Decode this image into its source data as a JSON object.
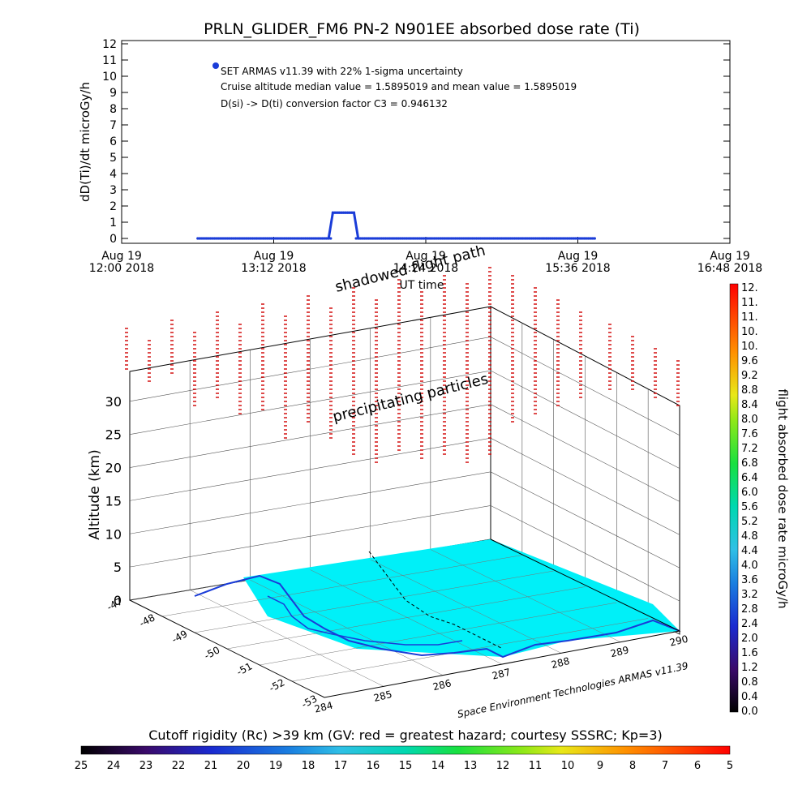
{
  "title": "PRLN_GLIDER_FM6 PN-2 N901EE absorbed dose rate (Ti)",
  "top_chart": {
    "ylabel": "dD(Ti)/dt microGy/h",
    "xlabel": "UT time",
    "y_ticks": [
      "0",
      "1",
      "2",
      "3",
      "4",
      "5",
      "6",
      "7",
      "8",
      "9",
      "10",
      "11",
      "12"
    ],
    "x_ticks": [
      {
        "date": "Aug 19",
        "time": "12:00 2018"
      },
      {
        "date": "Aug 19",
        "time": "13:12 2018"
      },
      {
        "date": "Aug 19",
        "time": "14:24 2018"
      },
      {
        "date": "Aug 19",
        "time": "15:36 2018"
      },
      {
        "date": "Aug 19",
        "time": "16:48 2018"
      }
    ],
    "annotations": [
      "SET ARMAS v11.39 with 22% 1-sigma uncertainty",
      "Cruise altitude median value = 1.5895019 and mean value = 1.5895019",
      "D(si) -> D(ti) conversion factor C3 = 0.946132"
    ],
    "series_color": "#1a3cd8"
  },
  "chart_data": [
    {
      "type": "line",
      "title": "PRLN_GLIDER_FM6 PN-2 N901EE absorbed dose rate (Ti)",
      "xlabel": "UT time",
      "ylabel": "dD(Ti)/dt microGy/h",
      "xlim": [
        "2018-08-19 12:00",
        "2018-08-19 16:48"
      ],
      "ylim": [
        0,
        12
      ],
      "grid": false,
      "x": [
        "2018-08-19 12:36",
        "2018-08-19 13:00",
        "2018-08-19 13:30",
        "2018-08-19 13:38",
        "2018-08-19 13:40",
        "2018-08-19 13:45",
        "2018-08-19 13:50",
        "2018-08-19 13:52",
        "2018-08-19 14:00",
        "2018-08-19 14:30",
        "2018-08-19 15:00",
        "2018-08-19 15:30",
        "2018-08-19 15:44"
      ],
      "series": [
        {
          "values": [
            0,
            0,
            0,
            0,
            1.59,
            1.59,
            1.59,
            0,
            0,
            0,
            0,
            0,
            0
          ]
        }
      ]
    },
    {
      "type": "scatter",
      "title": "",
      "xlabel": "",
      "ylabel": "Altitude (km)",
      "zlim": [
        0,
        30
      ],
      "z_ticks": [
        "0",
        "5",
        "10",
        "15",
        "20",
        "25",
        "30"
      ],
      "lat_ticks": [
        "-47",
        "-48",
        "-49",
        "-50",
        "-51",
        "-52",
        "-53"
      ],
      "lon_ticks": [
        "284",
        "285",
        "286",
        "287",
        "288",
        "289",
        "290"
      ],
      "labels_3d": [
        "shadowed flight path",
        "precipitating particles"
      ],
      "colorbar": {
        "label": "flight absorbed dose rate microGy/h",
        "ticks": [
          "0.0",
          "0.4",
          "0.8",
          "1.2",
          "1.6",
          "2.0",
          "2.4",
          "2.8",
          "3.2",
          "3.6",
          "4.0",
          "4.4",
          "4.8",
          "5.2",
          "5.6",
          "6.0",
          "6.4",
          "6.8",
          "7.2",
          "7.6",
          "8.0",
          "8.4",
          "8.8",
          "9.2",
          "9.6",
          "10.",
          "10.",
          "11.",
          "11.",
          "12."
        ]
      },
      "bottom_colorbar": {
        "label": "Cutoff rigidity (Rc) >39 km (GV: red = greatest hazard; courtesy SSSRC; Kp=3)",
        "ticks": [
          "25",
          "24",
          "23",
          "22",
          "21",
          "20",
          "19",
          "18",
          "17",
          "16",
          "15",
          "14",
          "13",
          "12",
          "11",
          "10",
          "9",
          "8",
          "7",
          "6",
          "5"
        ]
      },
      "credit": "Space Environment Technologies ARMAS v11.39"
    }
  ]
}
